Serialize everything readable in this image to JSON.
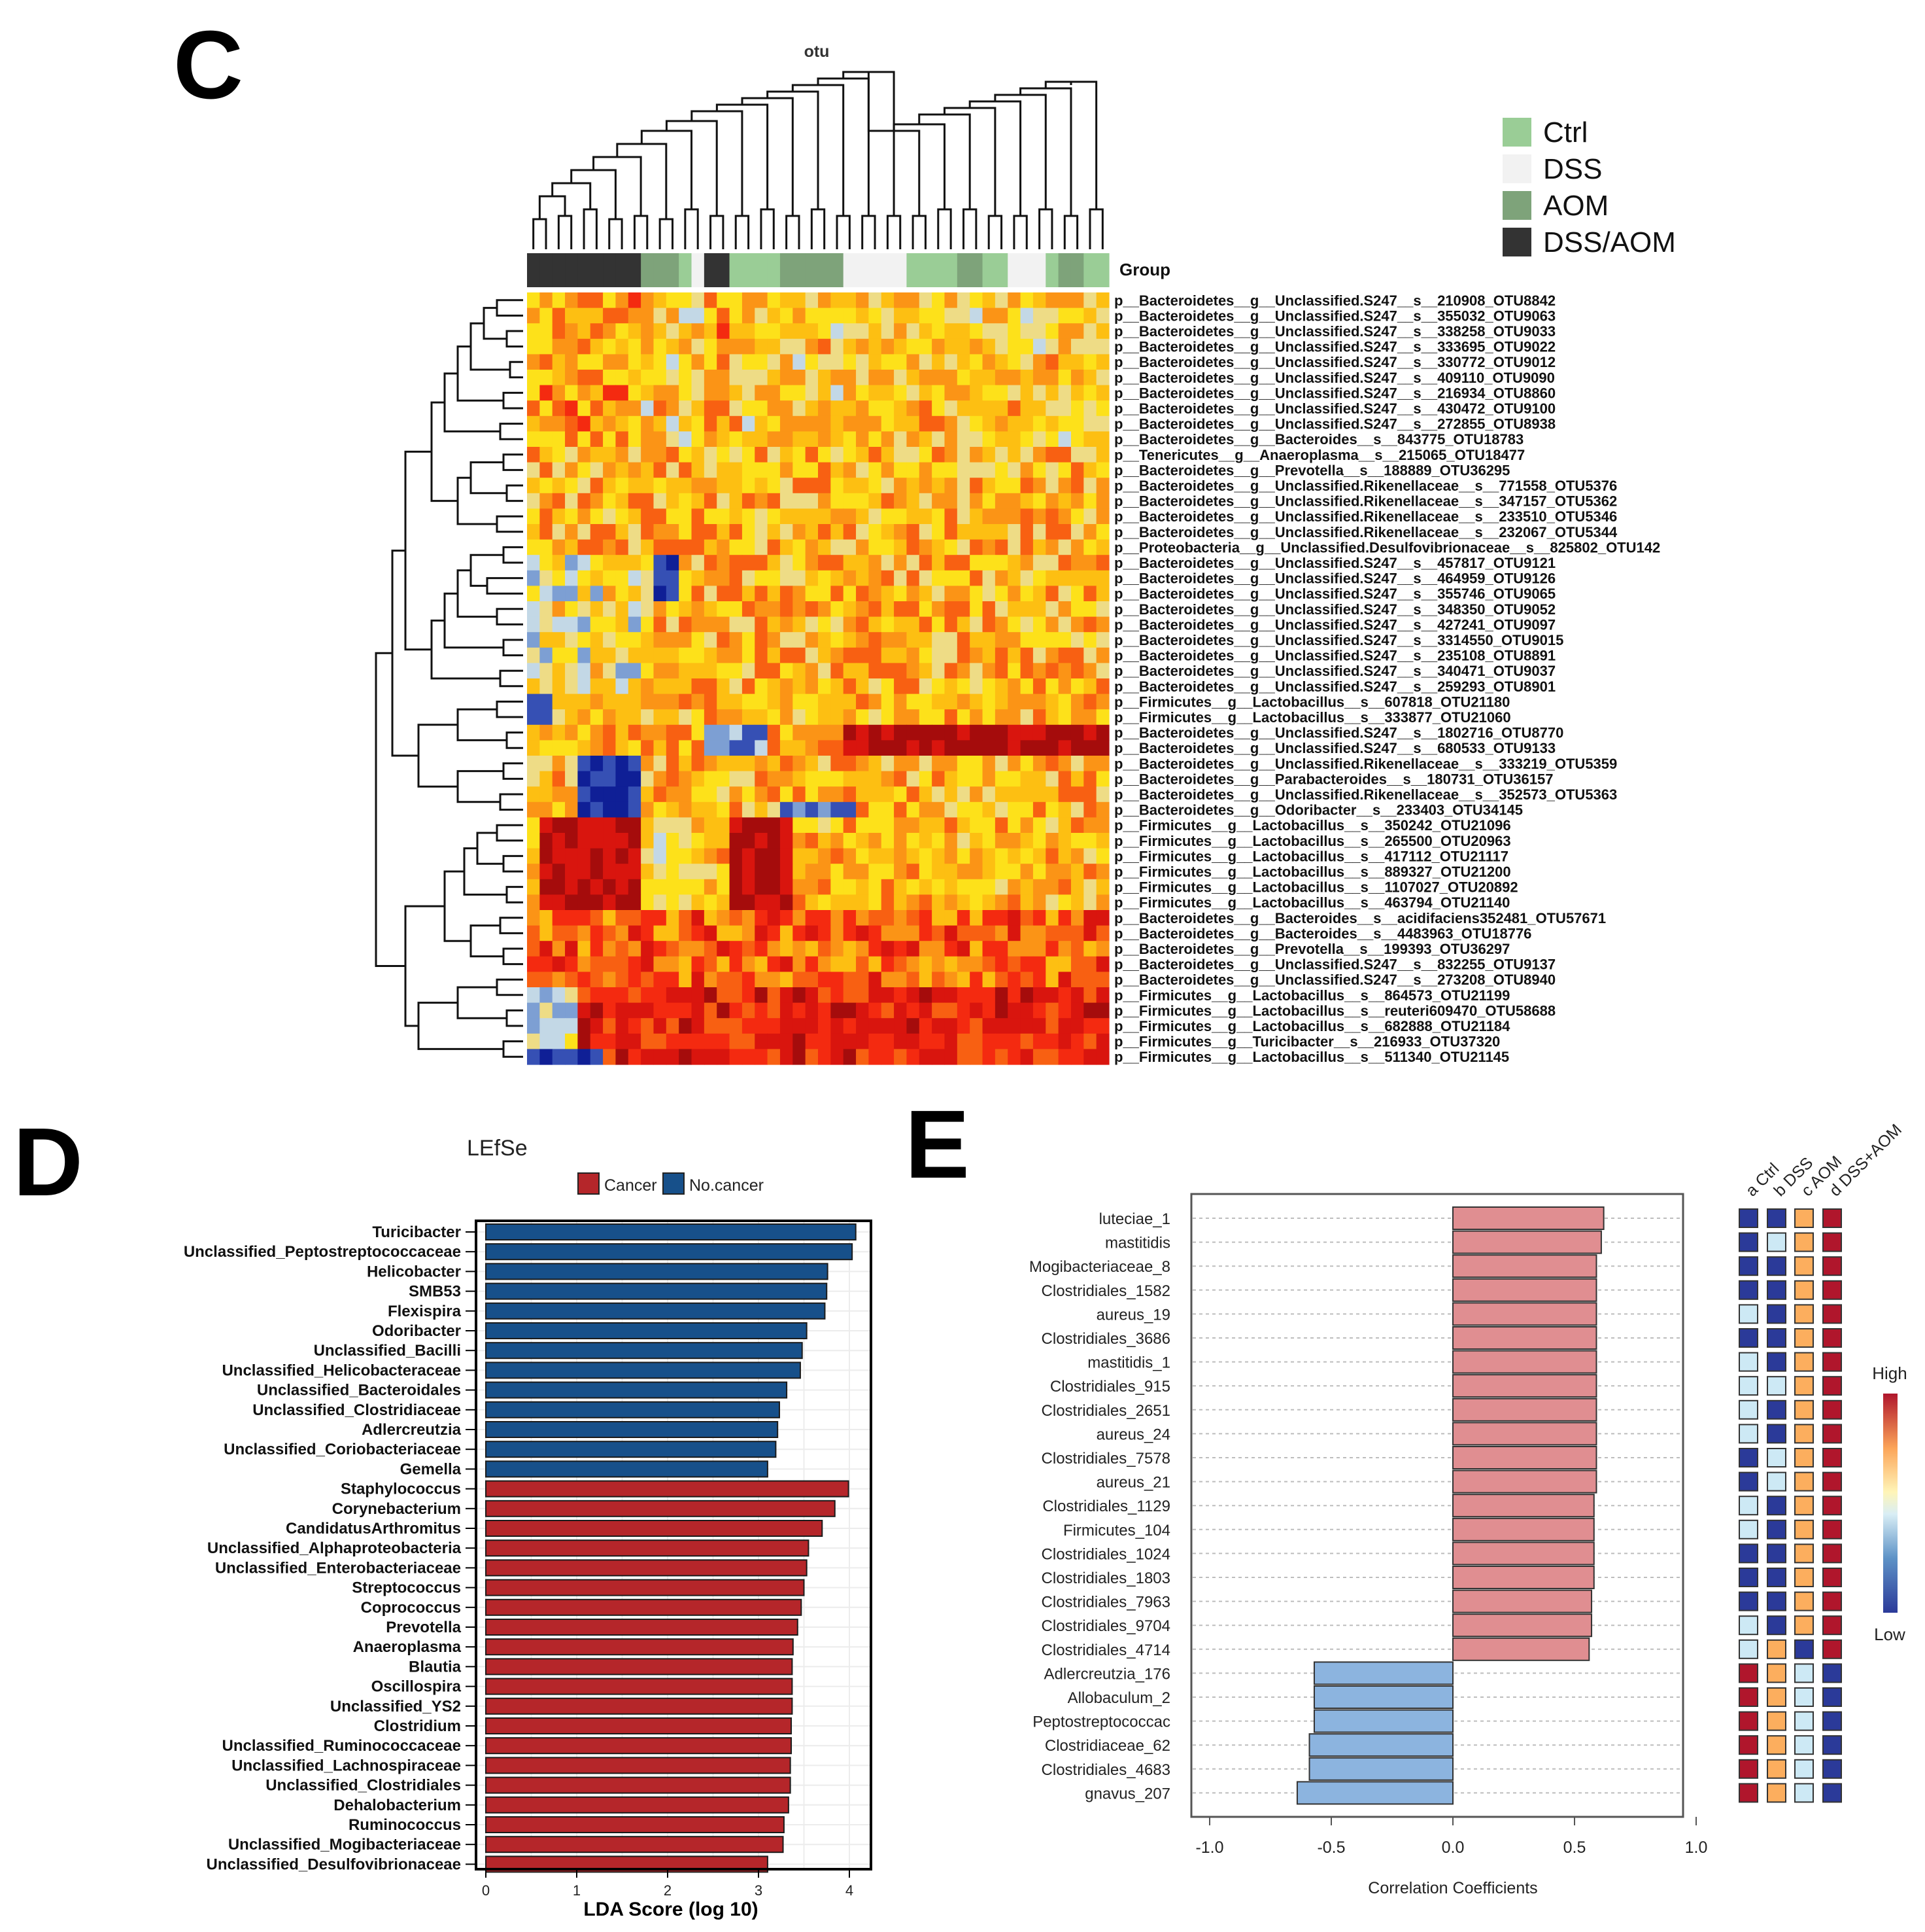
{
  "panel_c": {
    "label": "C",
    "title": "otu",
    "group_label": "Group",
    "legend": [
      {
        "name": "Ctrl",
        "color": "#9acd96"
      },
      {
        "name": "DSS",
        "color": "#f2f2f2"
      },
      {
        "name": "AOM",
        "color": "#7ea37a"
      },
      {
        "name": "DSS/AOM",
        "color": "#333333"
      }
    ],
    "colors": {
      "dark": "#333333",
      "aom": "#7ea37a",
      "ctrl": "#9acd96",
      "dss": "#f2f2f2"
    }
  },
  "panel_d": {
    "label": "D",
    "colors": {
      "cancer": "#b5262a",
      "nocancer": "#17508a"
    }
  },
  "panel_e": {
    "label": "E",
    "heat_labels": [
      "a Ctrl",
      "b DSS",
      "c AOM",
      "d DSS+AOM"
    ],
    "high_label": "High",
    "low_label": "Low",
    "colors": {
      "pos": "#e08e91",
      "neg": "#8cb4df",
      "lo": "#2b3a99",
      "lightblue": "#cde9f5",
      "orange": "#fcae5e",
      "hi": "#b0162c"
    }
  },
  "chart_data": [
    {
      "type": "heatmap",
      "title": "otu",
      "group_track": [
        "DSS/AOM",
        "DSS/AOM",
        "DSS/AOM",
        "DSS/AOM",
        "DSS/AOM",
        "DSS/AOM",
        "DSS/AOM",
        "DSS/AOM",
        "DSS/AOM",
        "AOM",
        "AOM",
        "AOM",
        "Ctrl",
        "DSS",
        "DSS/AOM",
        "DSS/AOM",
        "Ctrl",
        "Ctrl",
        "Ctrl",
        "Ctrl",
        "AOM",
        "AOM",
        "AOM",
        "AOM",
        "AOM",
        "DSS",
        "DSS",
        "DSS",
        "DSS",
        "DSS",
        "Ctrl",
        "Ctrl",
        "Ctrl",
        "Ctrl",
        "AOM",
        "AOM",
        "Ctrl",
        "Ctrl",
        "DSS",
        "DSS",
        "DSS",
        "Ctrl",
        "AOM",
        "AOM",
        "Ctrl",
        "Ctrl"
      ],
      "rows": [
        "p__Bacteroidetes__g__Unclassified.S247__s__210908_OTU8842",
        "p__Bacteroidetes__g__Unclassified.S247__s__355032_OTU9063",
        "p__Bacteroidetes__g__Unclassified.S247__s__338258_OTU9033",
        "p__Bacteroidetes__g__Unclassified.S247__s__333695_OTU9022",
        "p__Bacteroidetes__g__Unclassified.S247__s__330772_OTU9012",
        "p__Bacteroidetes__g__Unclassified.S247__s__409110_OTU9090",
        "p__Bacteroidetes__g__Unclassified.S247__s__216934_OTU8860",
        "p__Bacteroidetes__g__Unclassified.S247__s__430472_OTU9100",
        "p__Bacteroidetes__g__Unclassified.S247__s__272855_OTU8938",
        "p__Bacteroidetes__g__Bacteroides__s__843775_OTU18783",
        "p__Tenericutes__g__Anaeroplasma__s__215065_OTU18477",
        "p__Bacteroidetes__g__Prevotella__s__188889_OTU36295",
        "p__Bacteroidetes__g__Unclassified.Rikenellaceae__s__771558_OTU5376",
        "p__Bacteroidetes__g__Unclassified.Rikenellaceae__s__347157_OTU5362",
        "p__Bacteroidetes__g__Unclassified.Rikenellaceae__s__233510_OTU5346",
        "p__Bacteroidetes__g__Unclassified.Rikenellaceae__s__232067_OTU5344",
        "p__Proteobacteria__g__Unclassified.Desulfovibrionaceae__s__825802_OTU142",
        "p__Bacteroidetes__g__Unclassified.S247__s__457817_OTU9121",
        "p__Bacteroidetes__g__Unclassified.S247__s__464959_OTU9126",
        "p__Bacteroidetes__g__Unclassified.S247__s__355746_OTU9065",
        "p__Bacteroidetes__g__Unclassified.S247__s__348350_OTU9052",
        "p__Bacteroidetes__g__Unclassified.S247__s__427241_OTU9097",
        "p__Bacteroidetes__g__Unclassified.S247__s__3314550_OTU9015",
        "p__Bacteroidetes__g__Unclassified.S247__s__235108_OTU8891",
        "p__Bacteroidetes__g__Unclassified.S247__s__340471_OTU9037",
        "p__Bacteroidetes__g__Unclassified.S247__s__259293_OTU8901",
        "p__Firmicutes__g__Lactobacillus__s__607818_OTU21180",
        "p__Firmicutes__g__Lactobacillus__s__333877_OTU21060",
        "p__Bacteroidetes__g__Unclassified.S247__s__1802716_OTU8770",
        "p__Bacteroidetes__g__Unclassified.S247__s__680533_OTU9133",
        "p__Bacteroidetes__g__Unclassified.Rikenellaceae__s__333219_OTU5359",
        "p__Bacteroidetes__g__Parabacteroides__s__180731_OTU36157",
        "p__Bacteroidetes__g__Unclassified.Rikenellaceae__s__352573_OTU5363",
        "p__Bacteroidetes__g__Odoribacter__s__233403_OTU34145",
        "p__Firmicutes__g__Lactobacillus__s__350242_OTU21096",
        "p__Firmicutes__g__Lactobacillus__s__265500_OTU20963",
        "p__Firmicutes__g__Lactobacillus__s__417112_OTU21117",
        "p__Firmicutes__g__Lactobacillus__s__889327_OTU21200",
        "p__Firmicutes__g__Lactobacillus__s__1107027_OTU20892",
        "p__Firmicutes__g__Lactobacillus__s__463794_OTU21140",
        "p__Bacteroidetes__g__Bacteroides__s__acidifaciens352481_OTU57671",
        "p__Bacteroidetes__g__Bacteroides__s__4483963_OTU18776",
        "p__Bacteroidetes__g__Prevotella__s__199393_OTU36297",
        "p__Bacteroidetes__g__Unclassified.S247__s__832255_OTU9137",
        "p__Bacteroidetes__g__Unclassified.S247__s__273208_OTU8940",
        "p__Firmicutes__g__Lactobacillus__s__864573_OTU21199",
        "p__Firmicutes__g__Lactobacillus__s__reuteri609470_OTU58688",
        "p__Firmicutes__g__Lactobacillus__s__682888_OTU21184",
        "p__Firmicutes__g__Turicibacter__s__216933_OTU37320",
        "p__Firmicutes__g__Lactobacillus__s__511340_OTU21145"
      ]
    },
    {
      "type": "bar",
      "orientation": "horizontal",
      "title": "LEfSe",
      "xlabel": "LDA Score (log 10)",
      "xlim": [
        0,
        4.3
      ],
      "xticks": [
        "0",
        "1",
        "2",
        "3",
        "4"
      ],
      "legend": [
        "Cancer",
        "No.cancer"
      ],
      "categories": [
        "Turicibacter",
        "Unclassified_Peptostreptococcaceae",
        "Helicobacter",
        "SMB53",
        "Flexispira",
        "Odoribacter",
        "Unclassified_Bacilli",
        "Unclassified_Helicobacteraceae",
        "Unclassified_Bacteroidales",
        "Unclassified_Clostridiaceae",
        "Adlercreutzia",
        "Unclassified_Coriobacteriaceae",
        "Gemella",
        "Staphylococcus",
        "Corynebacterium",
        "CandidatusArthromitus",
        "Unclassified_Alphaproteobacteria",
        "Unclassified_Enterobacteriaceae",
        "Streptococcus",
        "Coprococcus",
        "Prevotella",
        "Anaeroplasma",
        "Blautia",
        "Oscillospira",
        "Unclassified_YS2",
        "Clostridium",
        "Unclassified_Ruminococcaceae",
        "Unclassified_Lachnospiraceae",
        "Unclassified_Clostridiales",
        "Dehalobacterium",
        "Ruminococcus",
        "Unclassified_Mogibacteriaceae",
        "Unclassified_Desulfovibrionaceae"
      ],
      "values": [
        4.07,
        4.03,
        3.76,
        3.75,
        3.73,
        3.53,
        3.48,
        3.46,
        3.31,
        3.23,
        3.21,
        3.19,
        3.1,
        3.99,
        3.84,
        3.7,
        3.55,
        3.53,
        3.5,
        3.47,
        3.43,
        3.38,
        3.37,
        3.37,
        3.37,
        3.36,
        3.36,
        3.35,
        3.35,
        3.33,
        3.28,
        3.27,
        3.1
      ],
      "classes": [
        "No.cancer",
        "No.cancer",
        "No.cancer",
        "No.cancer",
        "No.cancer",
        "No.cancer",
        "No.cancer",
        "No.cancer",
        "No.cancer",
        "No.cancer",
        "No.cancer",
        "No.cancer",
        "No.cancer",
        "Cancer",
        "Cancer",
        "Cancer",
        "Cancer",
        "Cancer",
        "Cancer",
        "Cancer",
        "Cancer",
        "Cancer",
        "Cancer",
        "Cancer",
        "Cancer",
        "Cancer",
        "Cancer",
        "Cancer",
        "Cancer",
        "Cancer",
        "Cancer",
        "Cancer",
        "Cancer"
      ]
    },
    {
      "type": "bar",
      "orientation": "horizontal",
      "xlabel": "Correlation Coefficients",
      "xlim": [
        -1.0,
        1.0
      ],
      "xticks": [
        "-1.0",
        "-0.5",
        "0.0",
        "0.5",
        "1.0"
      ],
      "categories": [
        "luteciae_1",
        "mastitidis",
        "Mogibacteriaceae_8",
        "Clostridiales_1582",
        "aureus_19",
        "Clostridiales_3686",
        "mastitidis_1",
        "Clostridiales_915",
        "Clostridiales_2651",
        "aureus_24",
        "Clostridiales_7578",
        "aureus_21",
        "Clostridiales_1129",
        "Firmicutes_104",
        "Clostridiales_1024",
        "Clostridiales_1803",
        "Clostridiales_7963",
        "Clostridiales_9704",
        "Clostridiales_4714",
        "Adlercreutzia_176",
        "Allobaculum_2",
        "Peptostreptococcac",
        "Clostridiaceae_62",
        "Clostridiales_4683",
        "gnavus_207"
      ],
      "values": [
        0.62,
        0.61,
        0.59,
        0.59,
        0.59,
        0.59,
        0.59,
        0.59,
        0.59,
        0.59,
        0.59,
        0.59,
        0.58,
        0.58,
        0.58,
        0.58,
        0.57,
        0.57,
        0.56,
        -0.57,
        -0.57,
        -0.57,
        -0.59,
        -0.59,
        -0.64
      ],
      "heatmap_columns": [
        "a Ctrl",
        "b DSS",
        "c AOM",
        "d DSS+AOM"
      ],
      "heatmap_levels": [
        [
          1,
          1,
          3,
          4
        ],
        [
          1,
          2,
          3,
          4
        ],
        [
          1,
          1,
          3,
          4
        ],
        [
          1,
          1,
          3,
          4
        ],
        [
          2,
          1,
          3,
          4
        ],
        [
          1,
          1,
          3,
          4
        ],
        [
          2,
          1,
          3,
          4
        ],
        [
          2,
          2,
          3,
          4
        ],
        [
          2,
          1,
          3,
          4
        ],
        [
          2,
          1,
          3,
          4
        ],
        [
          1,
          2,
          3,
          4
        ],
        [
          1,
          2,
          3,
          4
        ],
        [
          2,
          1,
          3,
          4
        ],
        [
          2,
          1,
          3,
          4
        ],
        [
          1,
          1,
          3,
          4
        ],
        [
          1,
          1,
          3,
          4
        ],
        [
          1,
          1,
          3,
          4
        ],
        [
          2,
          1,
          3,
          4
        ],
        [
          2,
          3,
          1,
          4
        ],
        [
          4,
          3,
          2,
          1
        ],
        [
          4,
          3,
          2,
          1
        ],
        [
          4,
          3,
          2,
          1
        ],
        [
          4,
          3,
          2,
          1
        ],
        [
          4,
          3,
          2,
          1
        ],
        [
          4,
          3,
          2,
          1
        ]
      ],
      "color_scale": [
        "Low",
        "High"
      ]
    }
  ]
}
